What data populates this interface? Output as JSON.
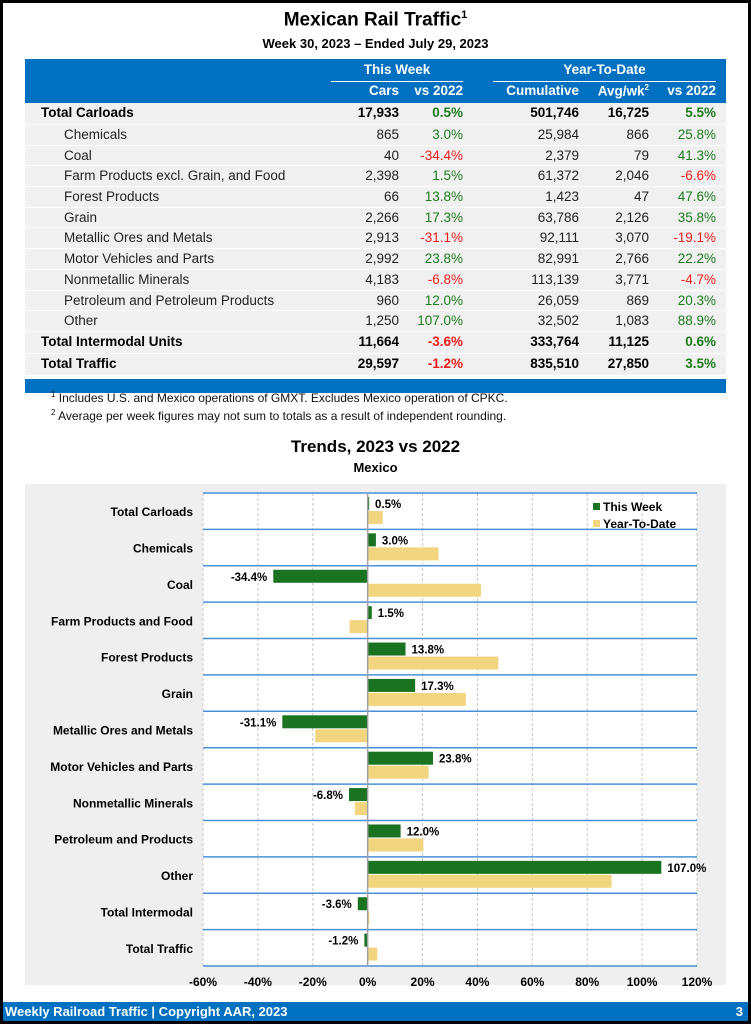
{
  "header": {
    "title": "Mexican Rail Traffic",
    "title_footnote": "1",
    "subtitle": "Week 30, 2023 – Ended July 29, 2023"
  },
  "table": {
    "group_this_week": "This Week",
    "group_ytd": "Year-To-Date",
    "col_cars": "Cars",
    "col_vs2022_week": "vs 2022",
    "col_cumulative": "Cumulative",
    "col_avgwk": "Avg/wk",
    "col_avgwk_footnote": "2",
    "col_vs2022_ytd": "vs 2022",
    "rows": [
      {
        "label": "Total Carloads",
        "cars": "17,933",
        "vs_week": "0.5%",
        "cumulative": "501,746",
        "avgwk": "16,725",
        "vs_ytd": "5.5%",
        "bold": true
      },
      {
        "label": "Chemicals",
        "cars": "865",
        "vs_week": "3.0%",
        "cumulative": "25,984",
        "avgwk": "866",
        "vs_ytd": "25.8%",
        "bold": false
      },
      {
        "label": "Coal",
        "cars": "40",
        "vs_week": "-34.4%",
        "cumulative": "2,379",
        "avgwk": "79",
        "vs_ytd": "41.3%",
        "bold": false
      },
      {
        "label": "Farm Products excl. Grain, and Food",
        "cars": "2,398",
        "vs_week": "1.5%",
        "cumulative": "61,372",
        "avgwk": "2,046",
        "vs_ytd": "-6.6%",
        "bold": false
      },
      {
        "label": "Forest Products",
        "cars": "66",
        "vs_week": "13.8%",
        "cumulative": "1,423",
        "avgwk": "47",
        "vs_ytd": "47.6%",
        "bold": false
      },
      {
        "label": "Grain",
        "cars": "2,266",
        "vs_week": "17.3%",
        "cumulative": "63,786",
        "avgwk": "2,126",
        "vs_ytd": "35.8%",
        "bold": false
      },
      {
        "label": "Metallic Ores and Metals",
        "cars": "2,913",
        "vs_week": "-31.1%",
        "cumulative": "92,111",
        "avgwk": "3,070",
        "vs_ytd": "-19.1%",
        "bold": false
      },
      {
        "label": "Motor Vehicles and Parts",
        "cars": "2,992",
        "vs_week": "23.8%",
        "cumulative": "82,991",
        "avgwk": "2,766",
        "vs_ytd": "22.2%",
        "bold": false
      },
      {
        "label": "Nonmetallic Minerals",
        "cars": "4,183",
        "vs_week": "-6.8%",
        "cumulative": "113,139",
        "avgwk": "3,771",
        "vs_ytd": "-4.7%",
        "bold": false
      },
      {
        "label": "Petroleum and Petroleum Products",
        "cars": "960",
        "vs_week": "12.0%",
        "cumulative": "26,059",
        "avgwk": "869",
        "vs_ytd": "20.3%",
        "bold": false
      },
      {
        "label": "Other",
        "cars": "1,250",
        "vs_week": "107.0%",
        "cumulative": "32,502",
        "avgwk": "1,083",
        "vs_ytd": "88.9%",
        "bold": false
      },
      {
        "label": "Total Intermodal Units",
        "cars": "11,664",
        "vs_week": "-3.6%",
        "cumulative": "333,764",
        "avgwk": "11,125",
        "vs_ytd": "0.6%",
        "bold": true
      },
      {
        "label": "Total Traffic",
        "cars": "29,597",
        "vs_week": "-1.2%",
        "cumulative": "835,510",
        "avgwk": "27,850",
        "vs_ytd": "3.5%",
        "bold": true
      }
    ]
  },
  "footnotes": [
    {
      "mark": "1",
      "text": "Includes U.S. and Mexico operations of GMXT. Excludes Mexico operation of CPKC."
    },
    {
      "mark": "2",
      "text": "Average per week figures may not sum to totals as a result of independent rounding."
    }
  ],
  "colors": {
    "brand_blue": "#0070c0",
    "positive": "#1e7b1e",
    "negative": "#ee1c1c",
    "this_week_bar": "#1a7320",
    "ytd_bar": "#f2d67f",
    "row_line": "#4a90d9"
  },
  "chart_data": {
    "type": "bar",
    "orientation": "horizontal",
    "title": "Trends, 2023 vs 2022",
    "subtitle": "Mexico",
    "categories": [
      "Total Carloads",
      "Chemicals",
      "Coal",
      "Farm Products and Food",
      "Forest Products",
      "Grain",
      "Metallic Ores and Metals",
      "Motor Vehicles and Parts",
      "Nonmetallic Minerals",
      "Petroleum and Products",
      "Other",
      "Total Intermodal",
      "Total Traffic"
    ],
    "series": [
      {
        "name": "This Week",
        "values": [
          0.5,
          3.0,
          -34.4,
          1.5,
          13.8,
          17.3,
          -31.1,
          23.8,
          -6.8,
          12.0,
          107.0,
          -3.6,
          -1.2
        ],
        "labels": [
          "0.5%",
          "3.0%",
          "-34.4%",
          "1.5%",
          "13.8%",
          "17.3%",
          "-31.1%",
          "23.8%",
          "-6.8%",
          "12.0%",
          "107.0%",
          "-3.6%",
          "-1.2%"
        ]
      },
      {
        "name": "Year-To-Date",
        "values": [
          5.5,
          25.8,
          41.3,
          -6.6,
          47.6,
          35.8,
          -19.1,
          22.2,
          -4.7,
          20.3,
          88.9,
          0.6,
          3.5
        ]
      }
    ],
    "xlim": [
      -60,
      120
    ],
    "xticks": [
      -60,
      -40,
      -20,
      0,
      20,
      40,
      60,
      80,
      100,
      120
    ],
    "xtick_labels": [
      "-60%",
      "-40%",
      "-20%",
      "0%",
      "20%",
      "40%",
      "60%",
      "80%",
      "100%",
      "120%"
    ],
    "xlabel": "",
    "ylabel": "",
    "grid": "vertical dashed",
    "legend": "top-right"
  },
  "footer": {
    "left": "Weekly Railroad Traffic | Copyright AAR, 2023",
    "page": "3"
  }
}
